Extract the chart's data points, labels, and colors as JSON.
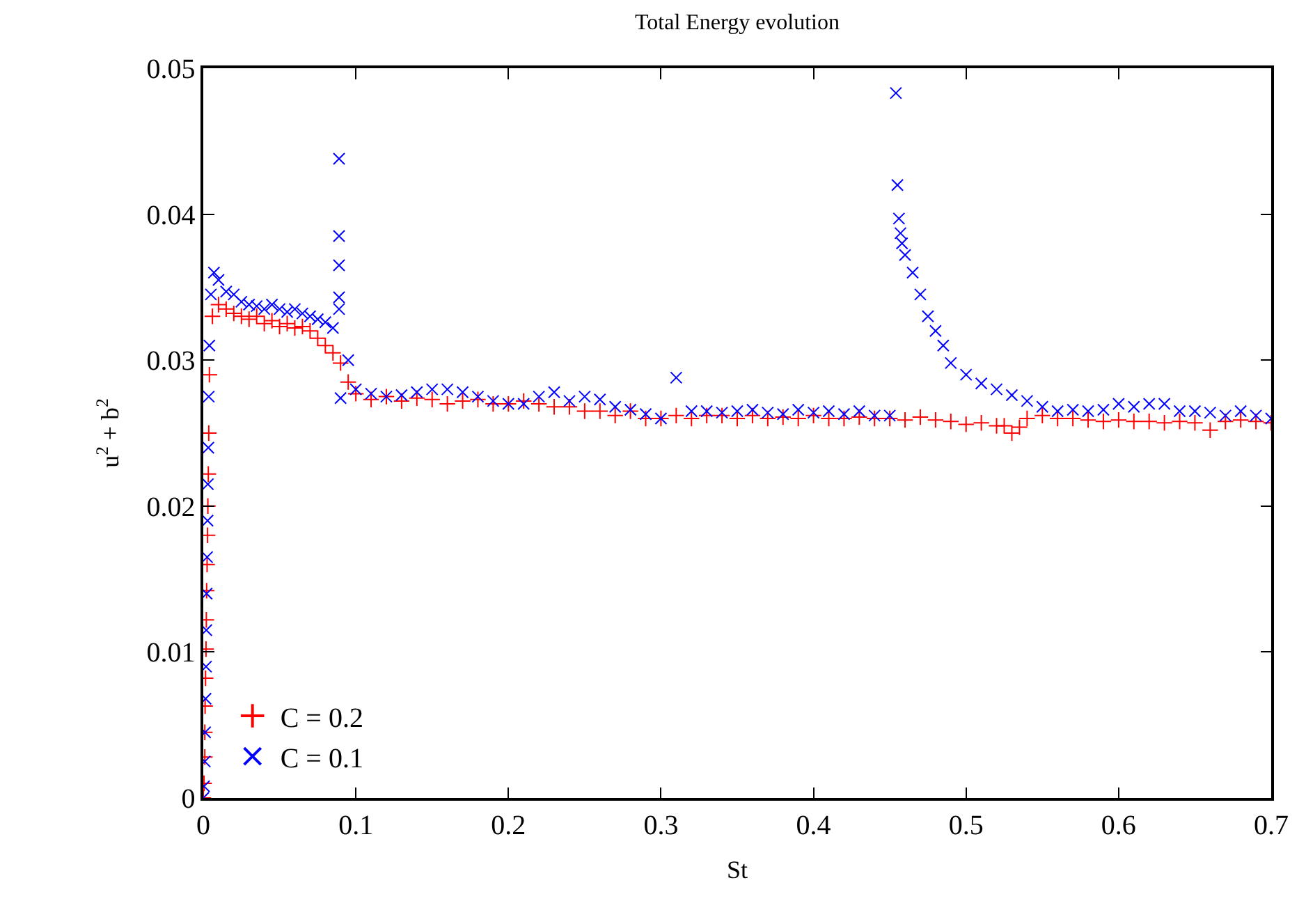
{
  "chart_data": {
    "type": "scatter",
    "title": "Total Energy evolution",
    "xlabel": "St",
    "ylabel": "u$^{2}$ + b$^{2}$",
    "xlim": [
      0,
      0.7
    ],
    "xticks": [
      0,
      0.1,
      0.2,
      0.3,
      0.4,
      0.5,
      0.6,
      0.7
    ],
    "ylim": [
      0,
      0.05
    ],
    "yticks": [
      0,
      0.01,
      0.02,
      0.03,
      0.04,
      0.05
    ],
    "legend": "bottom left",
    "series": [
      {
        "name": "C = 0.2",
        "color": "#ff0000",
        "marker": "cross",
        "x": [
          0.0,
          0.0005,
          0.001,
          0.001,
          0.0012,
          0.0015,
          0.0018,
          0.002,
          0.0022,
          0.0025,
          0.0028,
          0.003,
          0.0033,
          0.0036,
          0.004,
          0.006,
          0.01,
          0.015,
          0.02,
          0.025,
          0.03,
          0.035,
          0.04,
          0.045,
          0.05,
          0.055,
          0.06,
          0.065,
          0.07,
          0.075,
          0.08,
          0.085,
          0.09,
          0.095,
          0.1,
          0.11,
          0.12,
          0.13,
          0.14,
          0.15,
          0.16,
          0.17,
          0.18,
          0.19,
          0.2,
          0.21,
          0.22,
          0.23,
          0.24,
          0.25,
          0.26,
          0.27,
          0.28,
          0.29,
          0.3,
          0.31,
          0.32,
          0.33,
          0.34,
          0.35,
          0.36,
          0.37,
          0.38,
          0.39,
          0.4,
          0.41,
          0.42,
          0.43,
          0.44,
          0.45,
          0.46,
          0.47,
          0.48,
          0.49,
          0.5,
          0.51,
          0.52,
          0.525,
          0.53,
          0.535,
          0.54,
          0.55,
          0.56,
          0.57,
          0.58,
          0.59,
          0.6,
          0.61,
          0.62,
          0.63,
          0.64,
          0.65,
          0.66,
          0.67,
          0.68,
          0.69,
          0.7
        ],
        "values": [
          0.0,
          0.001,
          0.0028,
          0.0045,
          0.0063,
          0.0082,
          0.0102,
          0.0122,
          0.0142,
          0.016,
          0.018,
          0.02,
          0.0222,
          0.025,
          0.029,
          0.033,
          0.0338,
          0.0335,
          0.0332,
          0.033,
          0.0328,
          0.033,
          0.0325,
          0.0327,
          0.0323,
          0.0325,
          0.0322,
          0.0323,
          0.032,
          0.0315,
          0.031,
          0.0305,
          0.0298,
          0.0285,
          0.0277,
          0.0273,
          0.0275,
          0.0272,
          0.0274,
          0.0273,
          0.027,
          0.0272,
          0.0273,
          0.027,
          0.027,
          0.0272,
          0.027,
          0.0268,
          0.0268,
          0.0265,
          0.0265,
          0.0262,
          0.0265,
          0.026,
          0.026,
          0.0262,
          0.026,
          0.0262,
          0.0262,
          0.026,
          0.0262,
          0.026,
          0.0261,
          0.026,
          0.0262,
          0.026,
          0.026,
          0.0261,
          0.026,
          0.026,
          0.0259,
          0.0261,
          0.0259,
          0.0258,
          0.0256,
          0.0257,
          0.0255,
          0.0255,
          0.025,
          0.0254,
          0.026,
          0.0262,
          0.026,
          0.026,
          0.0259,
          0.0258,
          0.0259,
          0.0258,
          0.0258,
          0.0257,
          0.0258,
          0.0257,
          0.0252,
          0.0258,
          0.0259,
          0.0258,
          0.0257
        ]
      },
      {
        "name": "C = 0.1",
        "color": "#0000ff",
        "marker": "x",
        "x": [
          0.0,
          0.0005,
          0.001,
          0.0012,
          0.0015,
          0.0018,
          0.002,
          0.0022,
          0.0025,
          0.0028,
          0.003,
          0.0033,
          0.0036,
          0.004,
          0.005,
          0.007,
          0.01,
          0.015,
          0.02,
          0.025,
          0.03,
          0.035,
          0.04,
          0.045,
          0.05,
          0.055,
          0.06,
          0.065,
          0.07,
          0.075,
          0.08,
          0.085,
          0.089,
          0.089,
          0.089,
          0.089,
          0.089,
          0.09,
          0.095,
          0.1,
          0.11,
          0.12,
          0.13,
          0.14,
          0.15,
          0.16,
          0.17,
          0.18,
          0.19,
          0.2,
          0.21,
          0.22,
          0.23,
          0.24,
          0.25,
          0.26,
          0.27,
          0.28,
          0.29,
          0.3,
          0.31,
          0.32,
          0.33,
          0.34,
          0.35,
          0.36,
          0.37,
          0.38,
          0.39,
          0.4,
          0.41,
          0.42,
          0.43,
          0.44,
          0.45,
          0.454,
          0.455,
          0.456,
          0.457,
          0.458,
          0.46,
          0.465,
          0.47,
          0.475,
          0.48,
          0.485,
          0.49,
          0.5,
          0.51,
          0.52,
          0.53,
          0.54,
          0.55,
          0.56,
          0.57,
          0.58,
          0.59,
          0.6,
          0.61,
          0.62,
          0.63,
          0.64,
          0.65,
          0.66,
          0.67,
          0.68,
          0.69,
          0.7
        ],
        "values": [
          0.0,
          0.0008,
          0.0025,
          0.0045,
          0.0068,
          0.009,
          0.0115,
          0.014,
          0.0165,
          0.019,
          0.0215,
          0.024,
          0.0275,
          0.031,
          0.0345,
          0.036,
          0.0355,
          0.0347,
          0.0345,
          0.034,
          0.0338,
          0.0337,
          0.0335,
          0.0338,
          0.0335,
          0.0333,
          0.0335,
          0.0332,
          0.033,
          0.0328,
          0.0326,
          0.0322,
          0.0438,
          0.0385,
          0.0365,
          0.0343,
          0.0335,
          0.0274,
          0.03,
          0.028,
          0.0277,
          0.0275,
          0.0276,
          0.0278,
          0.028,
          0.028,
          0.0278,
          0.0275,
          0.0272,
          0.027,
          0.027,
          0.0275,
          0.0278,
          0.0272,
          0.0275,
          0.0273,
          0.0268,
          0.0266,
          0.0263,
          0.026,
          0.0288,
          0.0265,
          0.0265,
          0.0264,
          0.0265,
          0.0266,
          0.0264,
          0.0263,
          0.0266,
          0.0264,
          0.0265,
          0.0263,
          0.0265,
          0.0262,
          0.0262,
          0.0483,
          0.042,
          0.0397,
          0.0387,
          0.038,
          0.0372,
          0.036,
          0.0345,
          0.033,
          0.032,
          0.031,
          0.0298,
          0.029,
          0.0284,
          0.028,
          0.0276,
          0.0272,
          0.0268,
          0.0265,
          0.0266,
          0.0265,
          0.0266,
          0.027,
          0.0268,
          0.027,
          0.027,
          0.0265,
          0.0265,
          0.0264,
          0.0262,
          0.0265,
          0.0262,
          0.026
        ]
      }
    ]
  }
}
